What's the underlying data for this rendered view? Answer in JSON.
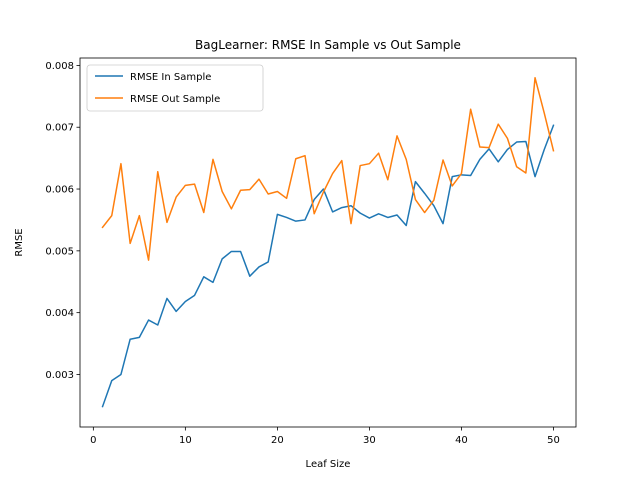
{
  "chart_data": {
    "type": "line",
    "title": "BagLearner: RMSE In Sample vs Out Sample",
    "xlabel": "Leaf Size",
    "ylabel": "RMSE",
    "xlim": [
      -1.45,
      52.45
    ],
    "ylim": [
      0.00215,
      0.00812
    ],
    "xticks": [
      0,
      10,
      20,
      30,
      40,
      50
    ],
    "xtick_labels": [
      "0",
      "10",
      "20",
      "30",
      "40",
      "50"
    ],
    "yticks": [
      0.003,
      0.004,
      0.005,
      0.006,
      0.007,
      0.008
    ],
    "ytick_labels": [
      "0.003",
      "0.004",
      "0.005",
      "0.006",
      "0.007",
      "0.008"
    ],
    "grid": false,
    "legend_position": "top-left",
    "x": [
      1,
      2,
      3,
      4,
      5,
      6,
      7,
      8,
      9,
      10,
      11,
      12,
      13,
      14,
      15,
      16,
      17,
      18,
      19,
      20,
      21,
      22,
      23,
      24,
      25,
      26,
      27,
      28,
      29,
      30,
      31,
      32,
      33,
      34,
      35,
      36,
      37,
      38,
      39,
      40,
      41,
      42,
      43,
      44,
      45,
      46,
      47,
      48,
      49,
      50
    ],
    "series": [
      {
        "name": "RMSE In Sample",
        "color": "#1f77b4",
        "values": [
          0.00248,
          0.0029,
          0.003,
          0.00357,
          0.0036,
          0.00388,
          0.0038,
          0.00423,
          0.00402,
          0.00418,
          0.00428,
          0.00458,
          0.00449,
          0.00487,
          0.00499,
          0.00499,
          0.00459,
          0.00474,
          0.00482,
          0.00559,
          0.00554,
          0.00548,
          0.0055,
          0.00583,
          0.006,
          0.00563,
          0.0057,
          0.00573,
          0.00561,
          0.00553,
          0.0056,
          0.00554,
          0.00558,
          0.00541,
          0.00612,
          0.00593,
          0.00573,
          0.00544,
          0.0062,
          0.00623,
          0.00622,
          0.00648,
          0.00665,
          0.00644,
          0.00664,
          0.00676,
          0.00677,
          0.0062,
          0.00664,
          0.00703
        ]
      },
      {
        "name": "RMSE Out Sample",
        "color": "#ff7f0e",
        "values": [
          0.00538,
          0.00557,
          0.00641,
          0.00512,
          0.00557,
          0.00485,
          0.00628,
          0.00546,
          0.00587,
          0.00606,
          0.00608,
          0.00562,
          0.00648,
          0.00596,
          0.00568,
          0.00598,
          0.00599,
          0.00616,
          0.00592,
          0.00596,
          0.00585,
          0.00649,
          0.00654,
          0.0056,
          0.00595,
          0.00625,
          0.00646,
          0.00544,
          0.00638,
          0.00641,
          0.00658,
          0.00615,
          0.00686,
          0.00648,
          0.00583,
          0.00562,
          0.00582,
          0.00647,
          0.00605,
          0.00625,
          0.00729,
          0.00668,
          0.00667,
          0.00705,
          0.00682,
          0.00636,
          0.00626,
          0.0078,
          0.00723,
          0.00662
        ]
      }
    ]
  }
}
